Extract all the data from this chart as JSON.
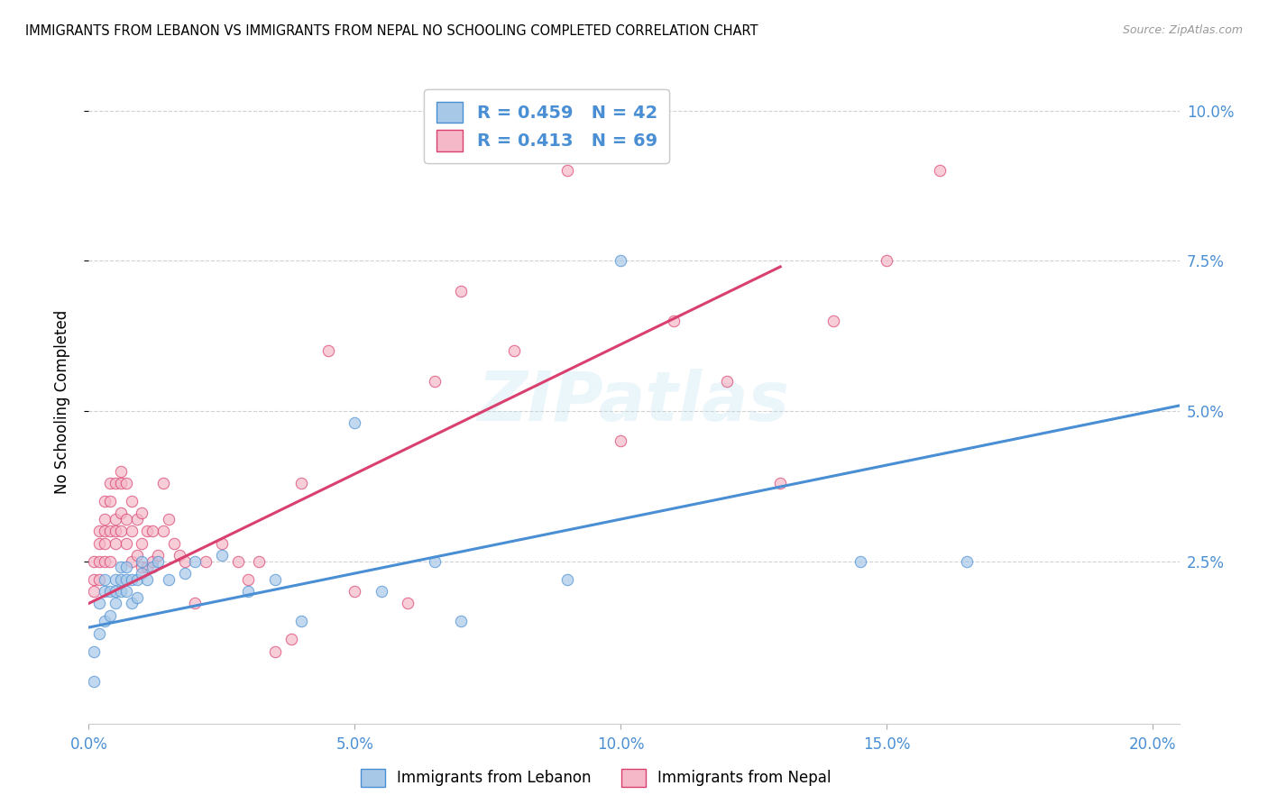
{
  "title": "IMMIGRANTS FROM LEBANON VS IMMIGRANTS FROM NEPAL NO SCHOOLING COMPLETED CORRELATION CHART",
  "source": "Source: ZipAtlas.com",
  "ylabel": "No Schooling Completed",
  "legend_label_1": "Immigrants from Lebanon",
  "legend_label_2": "Immigrants from Nepal",
  "r1": 0.459,
  "n1": 42,
  "r2": 0.413,
  "n2": 69,
  "color_lebanon": "#a8c8e8",
  "color_nepal": "#f5b8c8",
  "color_line_lebanon": "#4a8fd4",
  "color_line_nepal": "#d94070",
  "color_text_blue": "#4a8fd4",
  "xlim": [
    0.0,
    0.205
  ],
  "ylim": [
    -0.002,
    0.105
  ],
  "xticks": [
    0.0,
    0.05,
    0.1,
    0.15,
    0.2
  ],
  "yticks": [
    0.025,
    0.05,
    0.075,
    0.1
  ],
  "xtick_labels": [
    "0.0%",
    "5.0%",
    "10.0%",
    "15.0%",
    "20.0%"
  ],
  "ytick_labels": [
    "2.5%",
    "5.0%",
    "7.5%",
    "10.0%"
  ],
  "watermark": "ZIPatlas",
  "leb_line_x0": 0.0,
  "leb_line_y0": 0.014,
  "leb_line_x1": 0.2,
  "leb_line_y1": 0.05,
  "nep_line_x0": 0.0,
  "nep_line_y0": 0.018,
  "nep_line_x1": 0.13,
  "nep_line_y1": 0.074,
  "lebanon_x": [
    0.001,
    0.001,
    0.002,
    0.002,
    0.003,
    0.003,
    0.003,
    0.004,
    0.004,
    0.005,
    0.005,
    0.005,
    0.006,
    0.006,
    0.006,
    0.007,
    0.007,
    0.007,
    0.008,
    0.008,
    0.009,
    0.009,
    0.01,
    0.01,
    0.011,
    0.012,
    0.013,
    0.015,
    0.018,
    0.02,
    0.025,
    0.03,
    0.035,
    0.04,
    0.05,
    0.055,
    0.065,
    0.07,
    0.09,
    0.1,
    0.145,
    0.165
  ],
  "lebanon_y": [
    0.005,
    0.01,
    0.013,
    0.018,
    0.015,
    0.02,
    0.022,
    0.016,
    0.02,
    0.018,
    0.02,
    0.022,
    0.02,
    0.022,
    0.024,
    0.02,
    0.022,
    0.024,
    0.018,
    0.022,
    0.019,
    0.022,
    0.023,
    0.025,
    0.022,
    0.024,
    0.025,
    0.022,
    0.023,
    0.025,
    0.026,
    0.02,
    0.022,
    0.015,
    0.048,
    0.02,
    0.025,
    0.015,
    0.022,
    0.075,
    0.025,
    0.025
  ],
  "nepal_x": [
    0.001,
    0.001,
    0.001,
    0.002,
    0.002,
    0.002,
    0.002,
    0.003,
    0.003,
    0.003,
    0.003,
    0.003,
    0.004,
    0.004,
    0.004,
    0.004,
    0.005,
    0.005,
    0.005,
    0.005,
    0.006,
    0.006,
    0.006,
    0.006,
    0.007,
    0.007,
    0.007,
    0.008,
    0.008,
    0.008,
    0.009,
    0.009,
    0.01,
    0.01,
    0.01,
    0.011,
    0.011,
    0.012,
    0.012,
    0.013,
    0.014,
    0.014,
    0.015,
    0.016,
    0.017,
    0.018,
    0.02,
    0.022,
    0.025,
    0.028,
    0.03,
    0.032,
    0.035,
    0.038,
    0.04,
    0.045,
    0.05,
    0.06,
    0.065,
    0.07,
    0.08,
    0.09,
    0.1,
    0.11,
    0.12,
    0.13,
    0.14,
    0.15,
    0.16
  ],
  "nepal_y": [
    0.02,
    0.022,
    0.025,
    0.022,
    0.025,
    0.028,
    0.03,
    0.025,
    0.028,
    0.03,
    0.032,
    0.035,
    0.025,
    0.03,
    0.035,
    0.038,
    0.028,
    0.03,
    0.032,
    0.038,
    0.03,
    0.033,
    0.038,
    0.04,
    0.028,
    0.032,
    0.038,
    0.025,
    0.03,
    0.035,
    0.026,
    0.032,
    0.024,
    0.028,
    0.033,
    0.024,
    0.03,
    0.025,
    0.03,
    0.026,
    0.03,
    0.038,
    0.032,
    0.028,
    0.026,
    0.025,
    0.018,
    0.025,
    0.028,
    0.025,
    0.022,
    0.025,
    0.01,
    0.012,
    0.038,
    0.06,
    0.02,
    0.018,
    0.055,
    0.07,
    0.06,
    0.09,
    0.045,
    0.065,
    0.055,
    0.038,
    0.065,
    0.075,
    0.09
  ]
}
